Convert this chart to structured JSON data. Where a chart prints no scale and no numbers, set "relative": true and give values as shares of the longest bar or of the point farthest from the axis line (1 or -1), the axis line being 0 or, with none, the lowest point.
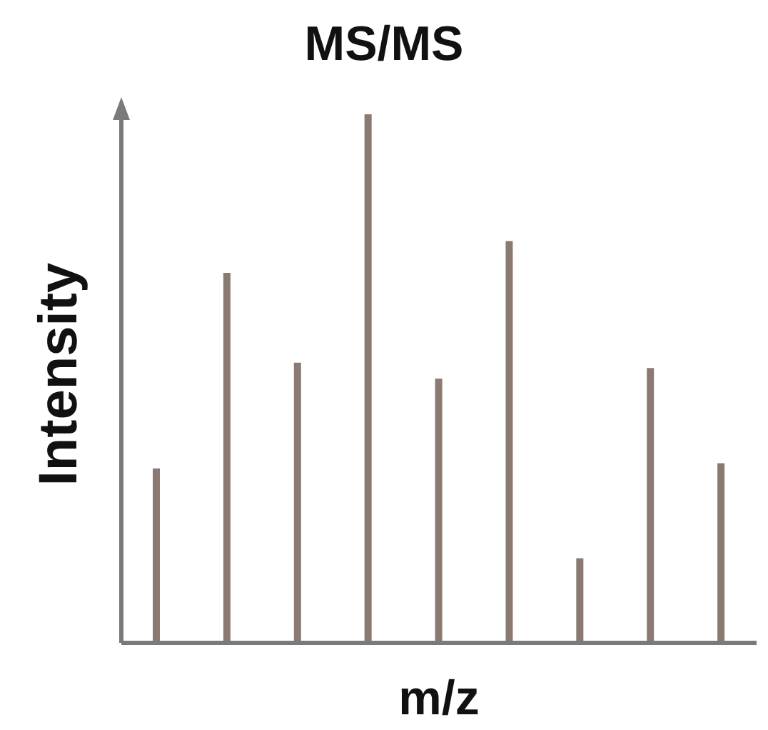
{
  "chart_data": {
    "type": "bar",
    "title": "MS/MS",
    "xlabel": "m/z",
    "ylabel": "Intensity",
    "relative": true,
    "categories": [
      null,
      null,
      null,
      null,
      null,
      null,
      null,
      null,
      null
    ],
    "values": [
      0.33,
      0.7,
      0.53,
      1,
      0.5,
      0.76,
      0.16,
      0.52,
      0.34
    ],
    "color": "#8a7a72",
    "grid": false,
    "legend": false
  }
}
